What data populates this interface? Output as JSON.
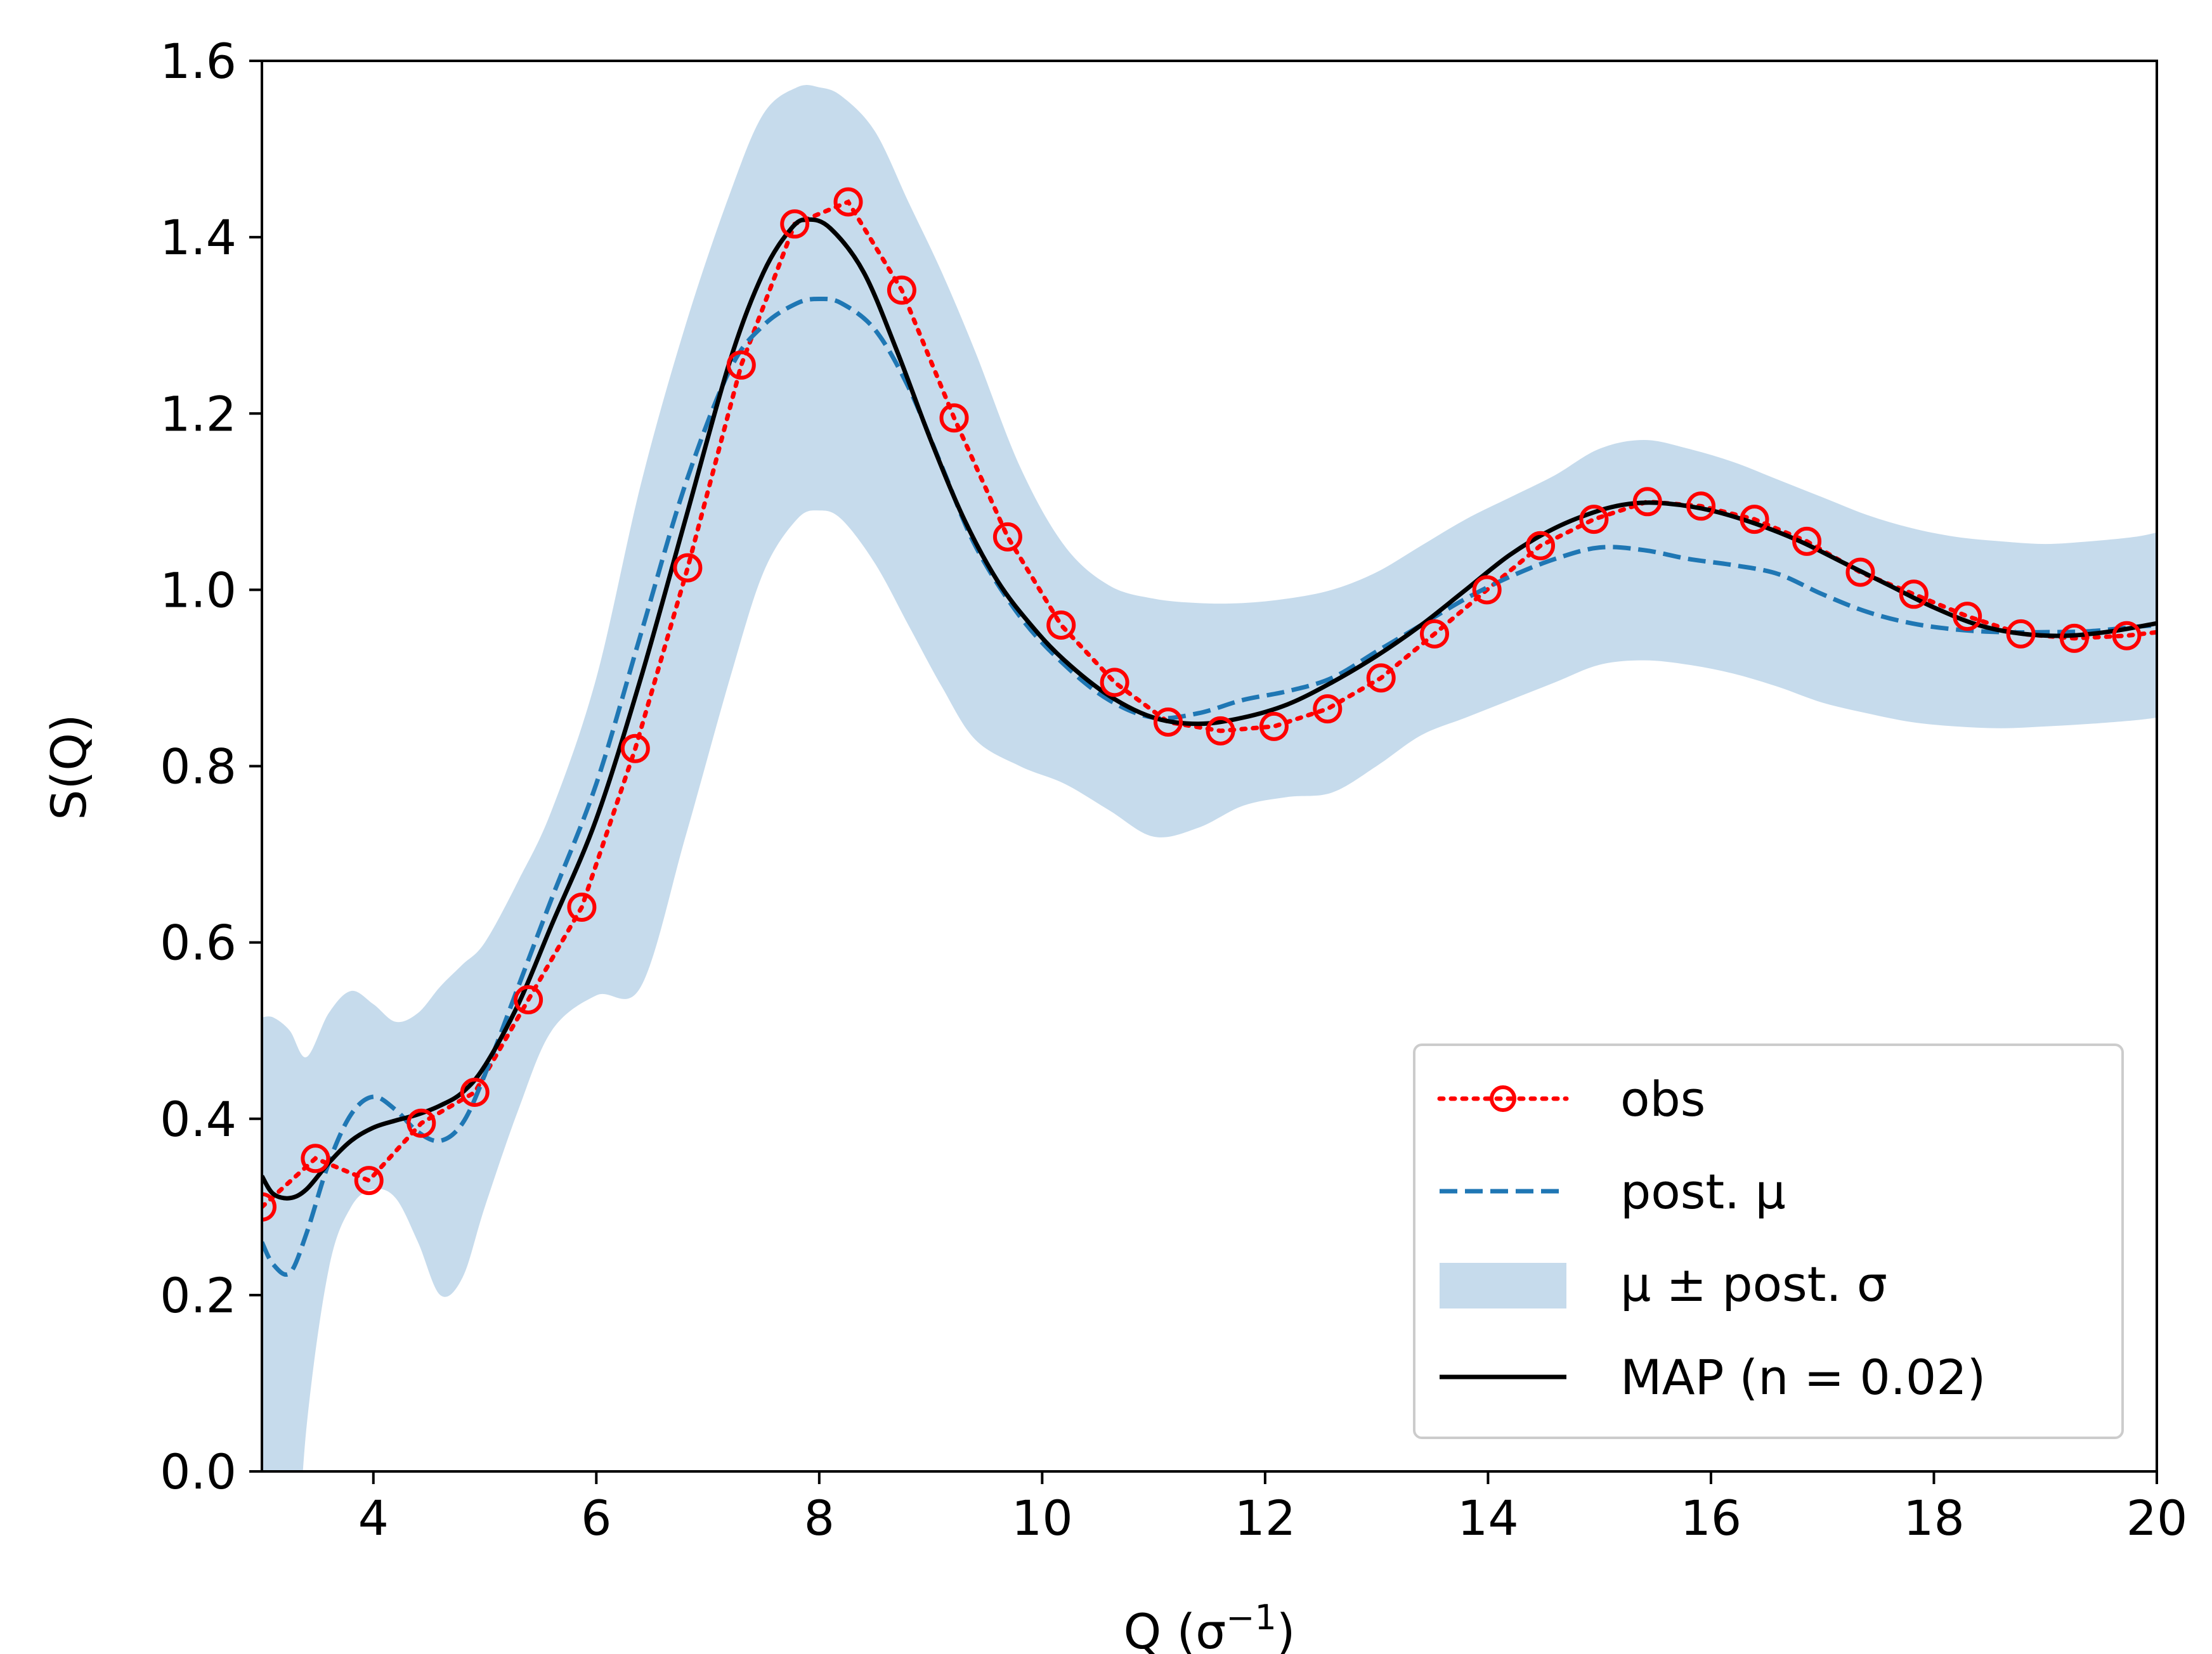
{
  "chart_data": {
    "type": "line",
    "xlabel": "Q (σ",
    "xlabel_sup": "−1",
    "xlabel_close": ")",
    "ylabel": "S(Q)",
    "xlim": [
      3,
      20
    ],
    "ylim": [
      0.0,
      1.6
    ],
    "xticks": [
      4,
      6,
      8,
      10,
      12,
      14,
      16,
      18,
      20
    ],
    "xtick_labels": [
      "4",
      "6",
      "8",
      "10",
      "12",
      "14",
      "16",
      "18",
      "20"
    ],
    "yticks": [
      0.0,
      0.2,
      0.4,
      0.6,
      0.8,
      1.0,
      1.2,
      1.4,
      1.6
    ],
    "ytick_labels": [
      "0.0",
      "0.2",
      "0.4",
      "0.6",
      "0.8",
      "1.0",
      "1.2",
      "1.4",
      "1.6"
    ],
    "grid": false,
    "legend_position": "lower-right",
    "colors": {
      "obs": "#ff0000",
      "post_mu": "#1f77b4",
      "band": "#c6dbec",
      "map": "#000000"
    },
    "series": [
      {
        "name": "obs",
        "style": "dotted-circle-markers",
        "x": [
          3.0,
          3.48,
          3.96,
          4.43,
          4.91,
          5.39,
          5.87,
          6.35,
          6.82,
          7.3,
          7.78,
          8.26,
          8.74,
          9.21,
          9.69,
          10.17,
          10.65,
          11.13,
          11.6,
          12.08,
          12.56,
          13.04,
          13.52,
          13.99,
          14.47,
          14.95,
          15.43,
          15.91,
          16.39,
          16.86,
          17.34,
          17.82,
          18.3,
          18.78,
          19.26,
          19.73,
          20.21
        ],
        "y": [
          0.3,
          0.355,
          0.33,
          0.395,
          0.43,
          0.535,
          0.64,
          0.82,
          1.025,
          1.255,
          1.415,
          1.44,
          1.34,
          1.195,
          1.06,
          0.96,
          0.895,
          0.85,
          0.84,
          0.845,
          0.865,
          0.9,
          0.95,
          1.0,
          1.05,
          1.08,
          1.1,
          1.095,
          1.08,
          1.055,
          1.02,
          0.995,
          0.97,
          0.95,
          0.945,
          0.948,
          0.955
        ]
      },
      {
        "name": "post. μ",
        "style": "dashed",
        "x": [
          3.0,
          3.1,
          3.25,
          3.4,
          3.6,
          3.8,
          4.0,
          4.2,
          4.4,
          4.6,
          4.8,
          5.0,
          5.3,
          5.6,
          6.0,
          6.4,
          6.8,
          7.2,
          7.5,
          7.8,
          8.0,
          8.2,
          8.5,
          8.8,
          9.1,
          9.4,
          9.8,
          10.2,
          10.6,
          11.0,
          11.4,
          11.8,
          12.2,
          12.6,
          13.0,
          13.4,
          13.8,
          14.2,
          14.6,
          15.0,
          15.4,
          15.8,
          16.2,
          16.6,
          17.0,
          17.4,
          17.8,
          18.2,
          18.6,
          19.0,
          19.4,
          19.8,
          20.0
        ],
        "y": [
          0.26,
          0.235,
          0.225,
          0.27,
          0.35,
          0.405,
          0.425,
          0.41,
          0.385,
          0.375,
          0.395,
          0.45,
          0.55,
          0.65,
          0.78,
          0.95,
          1.12,
          1.25,
          1.3,
          1.325,
          1.33,
          1.325,
          1.295,
          1.23,
          1.14,
          1.05,
          0.97,
          0.915,
          0.875,
          0.855,
          0.86,
          0.875,
          0.885,
          0.9,
          0.93,
          0.96,
          0.99,
          1.015,
          1.035,
          1.048,
          1.045,
          1.035,
          1.028,
          1.018,
          0.995,
          0.975,
          0.962,
          0.955,
          0.952,
          0.952,
          0.953,
          0.958,
          0.96
        ]
      },
      {
        "name": "μ ± post. σ",
        "style": "band",
        "x": [
          3.0,
          3.1,
          3.25,
          3.4,
          3.6,
          3.8,
          4.0,
          4.2,
          4.4,
          4.6,
          4.8,
          5.0,
          5.3,
          5.6,
          6.0,
          6.4,
          6.8,
          7.2,
          7.5,
          7.8,
          8.0,
          8.2,
          8.5,
          8.8,
          9.1,
          9.4,
          9.8,
          10.2,
          10.6,
          11.0,
          11.4,
          11.8,
          12.2,
          12.6,
          13.0,
          13.4,
          13.8,
          14.2,
          14.6,
          15.0,
          15.4,
          15.8,
          16.2,
          16.6,
          17.0,
          17.4,
          17.8,
          18.2,
          18.6,
          19.0,
          19.4,
          19.8,
          20.0
        ],
        "lower": [
          0.0,
          -0.1,
          -0.2,
          0.05,
          0.23,
          0.3,
          0.32,
          0.31,
          0.26,
          0.2,
          0.22,
          0.3,
          0.41,
          0.5,
          0.54,
          0.55,
          0.72,
          0.9,
          1.02,
          1.08,
          1.09,
          1.08,
          1.03,
          0.96,
          0.89,
          0.83,
          0.8,
          0.78,
          0.75,
          0.72,
          0.73,
          0.755,
          0.765,
          0.77,
          0.8,
          0.835,
          0.855,
          0.875,
          0.895,
          0.915,
          0.92,
          0.915,
          0.905,
          0.89,
          0.872,
          0.86,
          0.85,
          0.845,
          0.843,
          0.845,
          0.848,
          0.852,
          0.855
        ],
        "upper": [
          0.515,
          0.515,
          0.5,
          0.47,
          0.52,
          0.545,
          0.53,
          0.51,
          0.52,
          0.55,
          0.575,
          0.6,
          0.67,
          0.75,
          0.9,
          1.12,
          1.3,
          1.45,
          1.54,
          1.57,
          1.57,
          1.56,
          1.52,
          1.44,
          1.36,
          1.27,
          1.14,
          1.05,
          1.005,
          0.99,
          0.985,
          0.985,
          0.99,
          1.0,
          1.02,
          1.05,
          1.08,
          1.105,
          1.13,
          1.16,
          1.17,
          1.16,
          1.145,
          1.125,
          1.105,
          1.085,
          1.07,
          1.06,
          1.055,
          1.052,
          1.055,
          1.06,
          1.065
        ]
      },
      {
        "name": "MAP (n = 0.02)",
        "style": "solid",
        "x": [
          3.0,
          3.1,
          3.25,
          3.4,
          3.6,
          3.8,
          4.0,
          4.2,
          4.4,
          4.6,
          4.8,
          5.0,
          5.3,
          5.6,
          6.0,
          6.4,
          6.8,
          7.2,
          7.5,
          7.75,
          7.9,
          8.1,
          8.4,
          8.7,
          9.0,
          9.3,
          9.6,
          9.9,
          10.2,
          10.6,
          11.0,
          11.4,
          11.8,
          12.2,
          12.6,
          13.0,
          13.4,
          13.8,
          14.2,
          14.6,
          15.0,
          15.3,
          15.6,
          16.0,
          16.4,
          16.8,
          17.2,
          17.6,
          18.0,
          18.4,
          18.8,
          19.2,
          19.6,
          20.0
        ],
        "y": [
          0.335,
          0.315,
          0.31,
          0.32,
          0.35,
          0.375,
          0.39,
          0.398,
          0.405,
          0.415,
          0.43,
          0.46,
          0.53,
          0.62,
          0.74,
          0.9,
          1.08,
          1.26,
          1.36,
          1.41,
          1.42,
          1.41,
          1.36,
          1.27,
          1.17,
          1.08,
          1.01,
          0.96,
          0.92,
          0.88,
          0.855,
          0.848,
          0.855,
          0.87,
          0.895,
          0.925,
          0.96,
          1.0,
          1.04,
          1.07,
          1.09,
          1.098,
          1.098,
          1.09,
          1.075,
          1.055,
          1.03,
          1.005,
          0.98,
          0.96,
          0.95,
          0.948,
          0.953,
          0.962
        ]
      }
    ]
  }
}
